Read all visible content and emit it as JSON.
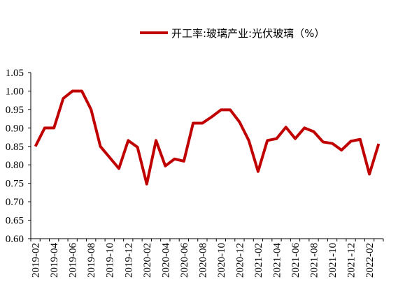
{
  "chart_data": {
    "type": "line",
    "title": "",
    "xlabel": "",
    "ylabel": "",
    "ylim": [
      0.6,
      1.05
    ],
    "yticks": [
      "0.60",
      "0.65",
      "0.70",
      "0.75",
      "0.80",
      "0.85",
      "0.90",
      "0.95",
      "1.00",
      "1.05"
    ],
    "xtick_labels": [
      "2019-02",
      "2019-04",
      "2019-06",
      "2019-08",
      "2019-10",
      "2019-12",
      "2020-02",
      "2020-04",
      "2020-06",
      "2020-08",
      "2020-10",
      "2020-12",
      "2021-02",
      "2021-04",
      "2021-06",
      "2021-08",
      "2021-10",
      "2021-12",
      "2022-02"
    ],
    "x": [
      "2019-02",
      "2019-03",
      "2019-04",
      "2019-05",
      "2019-06",
      "2019-07",
      "2019-08",
      "2019-09",
      "2019-10",
      "2019-11",
      "2019-12",
      "2020-01",
      "2020-02",
      "2020-03",
      "2020-04",
      "2020-05",
      "2020-06",
      "2020-07",
      "2020-08",
      "2020-09",
      "2020-10",
      "2020-11",
      "2020-12",
      "2021-01",
      "2021-02",
      "2021-03",
      "2021-04",
      "2021-05",
      "2021-06",
      "2021-07",
      "2021-08",
      "2021-09",
      "2021-10",
      "2021-11",
      "2021-12",
      "2022-01",
      "2022-02",
      "2022-03"
    ],
    "series": [
      {
        "name": "开工率:玻璃产业:光伏玻璃（%）",
        "color": "#C00000",
        "values": [
          0.85,
          0.9,
          0.9,
          0.98,
          1.0,
          1.0,
          0.95,
          0.85,
          0.82,
          0.79,
          0.866,
          0.848,
          0.748,
          0.866,
          0.797,
          0.816,
          0.81,
          0.913,
          0.913,
          0.93,
          0.949,
          0.949,
          0.916,
          0.866,
          0.782,
          0.866,
          0.871,
          0.902,
          0.871,
          0.9,
          0.89,
          0.862,
          0.858,
          0.84,
          0.864,
          0.869,
          0.775,
          0.857
        ]
      }
    ],
    "legend_position": "top-right",
    "grid": false
  }
}
